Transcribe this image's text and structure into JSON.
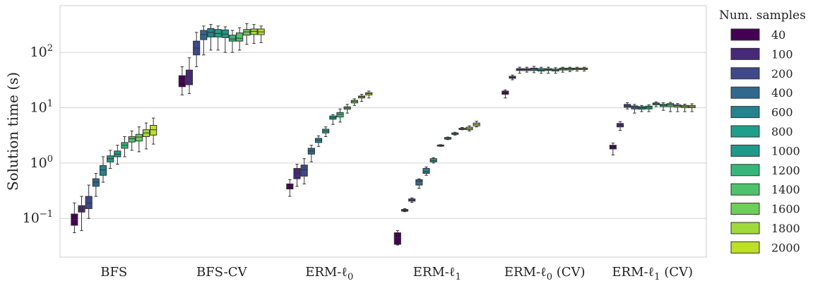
{
  "chart_data": {
    "type": "box",
    "ylabel": "Solution time (s)",
    "yscale": "log",
    "ylim": [
      0.02,
      700
    ],
    "y_ticks": [
      {
        "value": 0.1,
        "base": "10",
        "exp": "−1"
      },
      {
        "value": 1,
        "base": "10",
        "exp": "0"
      },
      {
        "value": 10,
        "base": "10",
        "exp": "1"
      },
      {
        "value": 100,
        "base": "10",
        "exp": "2"
      }
    ],
    "grid": "horizontal",
    "legend": {
      "title": "Num. samples",
      "placement": "outside-right"
    },
    "categories": [
      {
        "base": "BFS",
        "sub": "",
        "suffix": ""
      },
      {
        "base": "BFS-CV",
        "sub": "",
        "suffix": ""
      },
      {
        "base": "ERM-ℓ",
        "sub": "0",
        "suffix": ""
      },
      {
        "base": "ERM-ℓ",
        "sub": "1",
        "suffix": ""
      },
      {
        "base": "ERM-ℓ",
        "sub": "0",
        "suffix": " (CV)"
      },
      {
        "base": "ERM-ℓ",
        "sub": "1",
        "suffix": " (CV)"
      }
    ],
    "series": [
      {
        "name": "40",
        "color": "#440154"
      },
      {
        "name": "100",
        "color": "#482878"
      },
      {
        "name": "200",
        "color": "#3e4989"
      },
      {
        "name": "400",
        "color": "#31688e"
      },
      {
        "name": "600",
        "color": "#26828e"
      },
      {
        "name": "800",
        "color": "#1f9e89"
      },
      {
        "name": "1000",
        "color": "#1f9a8a"
      },
      {
        "name": "1200",
        "color": "#35b779"
      },
      {
        "name": "1400",
        "color": "#4ec36b"
      },
      {
        "name": "1600",
        "color": "#6ece58"
      },
      {
        "name": "1800",
        "color": "#9fda3a"
      },
      {
        "name": "2000",
        "color": "#bddf26"
      }
    ],
    "boxes": [
      [
        [
          0.055,
          0.075,
          0.095,
          0.12,
          0.19
        ],
        [
          0.06,
          0.13,
          0.15,
          0.17,
          0.25
        ],
        [
          0.1,
          0.15,
          0.19,
          0.25,
          0.4
        ],
        [
          0.25,
          0.38,
          0.45,
          0.52,
          0.65
        ],
        [
          0.45,
          0.6,
          0.75,
          0.9,
          1.3
        ],
        [
          0.8,
          1.05,
          1.2,
          1.35,
          1.7
        ],
        [
          0.95,
          1.3,
          1.45,
          1.65,
          2.1
        ],
        [
          1.3,
          1.85,
          2.1,
          2.35,
          3.0
        ],
        [
          1.7,
          2.4,
          2.75,
          3.0,
          3.8
        ],
        [
          1.6,
          2.5,
          2.95,
          3.3,
          4.5
        ],
        [
          1.8,
          3.0,
          3.5,
          4.0,
          5.3
        ],
        [
          2.2,
          3.2,
          4.0,
          4.8,
          6.5
        ]
      ],
      [
        [
          17,
          24,
          30,
          38,
          55
        ],
        [
          18,
          26,
          37,
          48,
          80
        ],
        [
          55,
          90,
          120,
          160,
          230
        ],
        [
          90,
          170,
          210,
          250,
          300
        ],
        [
          110,
          190,
          230,
          270,
          320
        ],
        [
          110,
          190,
          220,
          260,
          300
        ],
        [
          100,
          185,
          215,
          255,
          290
        ],
        [
          100,
          160,
          175,
          205,
          250
        ],
        [
          110,
          160,
          180,
          225,
          280
        ],
        [
          140,
          205,
          235,
          260,
          330
        ],
        [
          145,
          210,
          240,
          265,
          320
        ],
        [
          150,
          210,
          235,
          265,
          300
        ]
      ],
      [
        [
          0.25,
          0.34,
          0.38,
          0.42,
          0.5
        ],
        [
          0.38,
          0.52,
          0.65,
          0.8,
          0.95
        ],
        [
          0.42,
          0.58,
          0.75,
          0.92,
          1.2
        ],
        [
          1.05,
          1.45,
          1.65,
          1.85,
          2.1
        ],
        [
          2.0,
          2.35,
          2.6,
          2.8,
          3.1
        ],
        [
          3.0,
          3.5,
          3.8,
          4.1,
          4.5
        ],
        [
          5.0,
          6.2,
          6.6,
          7.1,
          7.5
        ],
        [
          5.5,
          6.8,
          7.6,
          8.2,
          9.5
        ],
        [
          8.0,
          9.4,
          9.9,
          10.4,
          11.5
        ],
        [
          11.0,
          12.2,
          13.0,
          13.6,
          14.5
        ],
        [
          13.0,
          15.0,
          15.8,
          16.3,
          17.5
        ],
        [
          15.0,
          17.0,
          18.0,
          18.7,
          20.0
        ]
      ],
      [
        [
          0.033,
          0.034,
          0.045,
          0.055,
          0.06
        ],
        [
          0.132,
          0.135,
          0.14,
          0.145,
          0.15
        ],
        [
          0.195,
          0.205,
          0.215,
          0.225,
          0.235
        ],
        [
          0.35,
          0.4,
          0.47,
          0.5,
          0.52
        ],
        [
          0.6,
          0.65,
          0.7,
          0.8,
          0.85
        ],
        [
          1.0,
          1.05,
          1.1,
          1.2,
          1.25
        ],
        [
          2.0,
          2.02,
          2.08,
          2.12,
          2.15
        ],
        [
          2.65,
          2.7,
          2.8,
          2.9,
          2.95
        ],
        [
          3.2,
          3.3,
          3.4,
          3.5,
          3.6
        ],
        [
          4.0,
          4.05,
          4.15,
          4.25,
          4.4
        ],
        [
          3.8,
          4.0,
          4.2,
          4.45,
          4.7
        ],
        [
          4.5,
          4.7,
          5.0,
          5.3,
          5.7
        ]
      ],
      [
        [
          15,
          17.5,
          19,
          20,
          21
        ],
        [
          32,
          34,
          35.5,
          37,
          39
        ],
        [
          42,
          47,
          49,
          51,
          54
        ],
        [
          44,
          47,
          49,
          51,
          54
        ],
        [
          43,
          47,
          50,
          52,
          56
        ],
        [
          42,
          46,
          48,
          51,
          54
        ],
        [
          42,
          47,
          49,
          51,
          54
        ],
        [
          42,
          46,
          48,
          50,
          53
        ],
        [
          44,
          48,
          50,
          52,
          54
        ],
        [
          45,
          48,
          50,
          52,
          54
        ],
        [
          46,
          49,
          50,
          52,
          54
        ],
        [
          46,
          49,
          51,
          52,
          54
        ]
      ],
      [
        [
          1.4,
          1.8,
          1.95,
          2.1,
          2.3
        ],
        [
          3.9,
          4.5,
          4.8,
          5.2,
          5.6
        ],
        [
          9.5,
          10.2,
          10.8,
          11.5,
          12.3
        ],
        [
          8.0,
          9.5,
          10.3,
          10.8,
          11.5
        ],
        [
          8.5,
          9.4,
          10.0,
          10.5,
          11.0
        ],
        [
          8.5,
          9.5,
          10.2,
          10.7,
          11.3
        ],
        [
          10.5,
          11.3,
          11.8,
          12.2,
          12.8
        ],
        [
          9.0,
          10.5,
          11.0,
          11.6,
          12.3
        ],
        [
          8.5,
          10.5,
          11.3,
          11.9,
          12.5
        ],
        [
          8.5,
          10.3,
          10.9,
          11.3,
          11.9
        ],
        [
          8.5,
          10.0,
          10.6,
          11.0,
          11.6
        ],
        [
          8.5,
          10.0,
          10.5,
          11.0,
          11.8
        ]
      ]
    ]
  }
}
